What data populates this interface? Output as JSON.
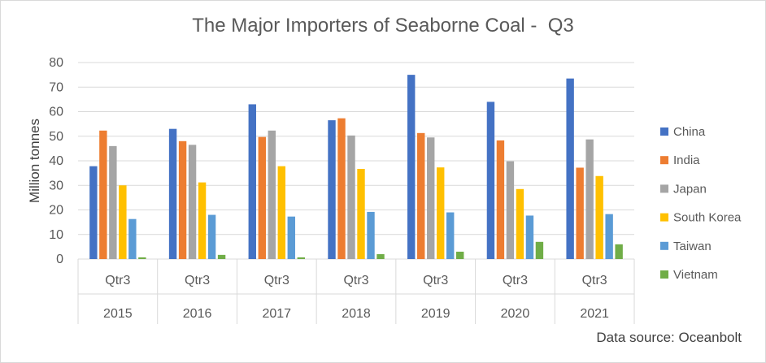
{
  "chart_data": {
    "type": "bar",
    "title": "The Major Importers of Seaborne Coal -  Q3",
    "ylabel": "Million tonnes",
    "xlabel": "",
    "ylim": [
      0,
      80
    ],
    "yticks": [
      0,
      10,
      20,
      30,
      40,
      50,
      60,
      70,
      80
    ],
    "grid": true,
    "legend_position": "right",
    "categories": [
      {
        "quarter": "Qtr3",
        "year": "2015"
      },
      {
        "quarter": "Qtr3",
        "year": "2016"
      },
      {
        "quarter": "Qtr3",
        "year": "2017"
      },
      {
        "quarter": "Qtr3",
        "year": "2018"
      },
      {
        "quarter": "Qtr3",
        "year": "2019"
      },
      {
        "quarter": "Qtr3",
        "year": "2020"
      },
      {
        "quarter": "Qtr3",
        "year": "2021"
      }
    ],
    "series": [
      {
        "name": "China",
        "color": "#4472C4",
        "values": [
          37.8,
          53.0,
          63.0,
          56.5,
          75.0,
          64.0,
          73.5
        ]
      },
      {
        "name": "India",
        "color": "#ED7D31",
        "values": [
          52.3,
          48.0,
          49.7,
          57.3,
          51.3,
          48.3,
          37.2
        ]
      },
      {
        "name": "Japan",
        "color": "#A5A5A5",
        "values": [
          46.0,
          46.5,
          52.3,
          50.3,
          49.5,
          39.8,
          48.7
        ]
      },
      {
        "name": "South Korea",
        "color": "#FFC000",
        "values": [
          30.0,
          31.2,
          37.8,
          36.7,
          37.3,
          28.5,
          33.8
        ]
      },
      {
        "name": "Taiwan",
        "color": "#5B9BD5",
        "values": [
          16.3,
          18.0,
          17.3,
          19.2,
          19.0,
          17.7,
          18.3
        ]
      },
      {
        "name": "Vietnam",
        "color": "#70AD47",
        "values": [
          0.7,
          1.7,
          0.7,
          2.0,
          3.0,
          7.0,
          6.0
        ]
      }
    ]
  },
  "source_note": "Data source: Oceanbolt"
}
